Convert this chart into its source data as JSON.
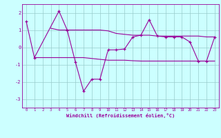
{
  "x_main": [
    0,
    1,
    4,
    5,
    6,
    7,
    8,
    9,
    10,
    11,
    12,
    13,
    14,
    15,
    16,
    17,
    18,
    19,
    20,
    21,
    22,
    23
  ],
  "y_main": [
    1.5,
    -0.6,
    2.1,
    1.0,
    -0.85,
    -2.55,
    -1.85,
    -1.85,
    -0.15,
    -0.15,
    -0.1,
    0.6,
    0.7,
    1.6,
    0.65,
    0.6,
    0.6,
    0.6,
    0.3,
    -0.8,
    -0.8,
    0.6
  ],
  "x_upper": [
    3,
    4,
    5,
    6,
    7,
    8,
    9,
    10,
    11,
    12,
    13,
    14,
    15,
    16,
    17,
    18,
    19,
    20,
    21,
    22,
    23
  ],
  "y_upper": [
    1.1,
    1.0,
    1.0,
    1.0,
    1.0,
    1.0,
    1.0,
    0.95,
    0.8,
    0.75,
    0.7,
    0.7,
    0.7,
    0.65,
    0.65,
    0.65,
    0.65,
    0.65,
    0.65,
    0.6,
    0.6
  ],
  "x_lower": [
    1,
    2,
    3,
    4,
    5,
    6,
    7,
    8,
    9,
    10,
    11,
    12,
    13,
    14,
    15,
    16,
    17,
    18,
    19,
    20,
    21,
    22,
    23
  ],
  "y_lower": [
    -0.6,
    -0.6,
    -0.6,
    -0.6,
    -0.6,
    -0.6,
    -0.6,
    -0.65,
    -0.7,
    -0.75,
    -0.75,
    -0.75,
    -0.78,
    -0.8,
    -0.8,
    -0.8,
    -0.8,
    -0.8,
    -0.8,
    -0.8,
    -0.8,
    -0.8,
    -0.8
  ],
  "color": "#990099",
  "bg_color": "#ccffff",
  "grid_color": "#99cccc",
  "xlabel": "Windchill (Refroidissement éolien,°C)",
  "yticks": [
    -3,
    -2,
    -1,
    0,
    1,
    2
  ],
  "xticks": [
    0,
    1,
    2,
    3,
    4,
    5,
    6,
    7,
    8,
    9,
    10,
    11,
    12,
    13,
    14,
    15,
    16,
    17,
    18,
    19,
    20,
    21,
    22,
    23
  ],
  "ylim": [
    -3.5,
    2.5
  ],
  "xlim": [
    -0.5,
    23.5
  ]
}
